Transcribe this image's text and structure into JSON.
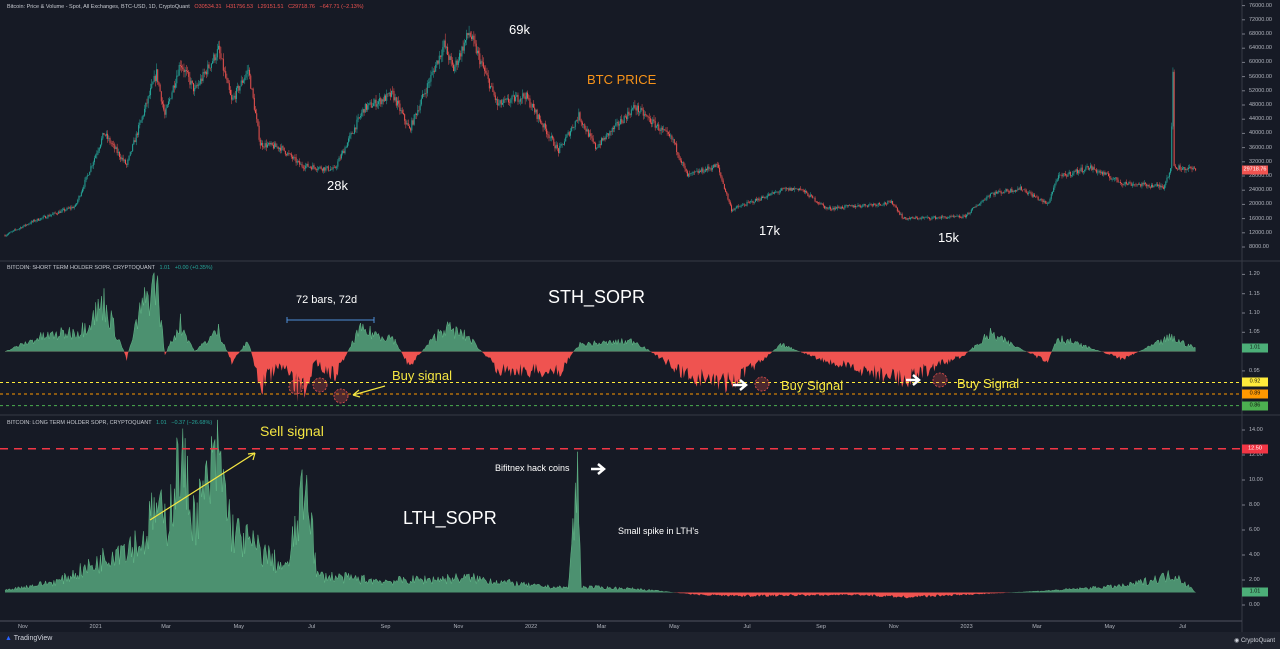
{
  "header": {
    "title": "Bitcoin: Price & Volume - Spot, All Exchanges, BTC-USD, 1D, CryptoQuant",
    "open": "O30534.31",
    "high": "H31756.53",
    "low": "L29151.51",
    "close": "C29718.76",
    "change": "−647.71 (−2.13%)"
  },
  "sth_legend": {
    "title": "BITCOIN: SHORT TERM HOLDER SOPR, CRYPTOQUANT",
    "value": "1.01",
    "change": "+0.00 (+0.35%)"
  },
  "lth_legend": {
    "title": "BITCOIN: LONG TERM HOLDER SOPR, CRYPTOQUANT",
    "value": "1.01",
    "change": "−0.37 (−26.68%)"
  },
  "annotations": {
    "p69k": "69k",
    "p28k": "28k",
    "p17k": "17k",
    "p15k": "15k",
    "btc_price": "BTC PRICE",
    "bars": "72 bars, 72d",
    "sth": "STH_SOPR",
    "buy1": "Buy signal",
    "buy2": "Buy Signal",
    "buy3": "Buy Signal",
    "sell": "Sell signal",
    "bitfinex": "Bifitnex hack coins",
    "lth": "LTH_SOPR",
    "spike": "Small spike in LTH's"
  },
  "footer": {
    "tradingview": "TradingView",
    "cryptoquant": "CryptoQuant"
  },
  "colors": {
    "up": "#26a69a",
    "down": "#ef5350",
    "sopr_up": "#5fb98a",
    "sopr_down": "#ef5350",
    "annotation": "#f5e642",
    "price_label": "#f7931a"
  },
  "chart_data": [
    {
      "type": "candlestick",
      "title": "Bitcoin: Price & Volume - Spot, All Exchanges, BTC-USD, 1D, CryptoQuant",
      "ylim": [
        6000,
        78000
      ],
      "yticks": [
        "76000.00",
        "72000.00",
        "68000.00",
        "64000.00",
        "60000.00",
        "56000.00",
        "52000.00",
        "48000.00",
        "44000.00",
        "40000.00",
        "36000.00",
        "32000.00",
        "28000.00",
        "24000.00",
        "20000.00",
        "16000.00",
        "12000.00",
        "8000.00"
      ],
      "last_price": "29718.76",
      "points": [
        [
          "2020-10-17",
          11300
        ],
        [
          "2020-11-10",
          15300
        ],
        [
          "2020-12-15",
          19500
        ],
        [
          "2021-01-08",
          40000
        ],
        [
          "2021-01-27",
          31000
        ],
        [
          "2021-02-21",
          57000
        ],
        [
          "2021-02-28",
          45000
        ],
        [
          "2021-03-13",
          60000
        ],
        [
          "2021-03-25",
          52000
        ],
        [
          "2021-04-14",
          63500
        ],
        [
          "2021-04-25",
          49000
        ],
        [
          "2021-05-09",
          58000
        ],
        [
          "2021-05-19",
          37000
        ],
        [
          "2021-06-05",
          36000
        ],
        [
          "2021-06-22",
          31000
        ],
        [
          "2021-07-20",
          29800
        ],
        [
          "2021-08-14",
          47000
        ],
        [
          "2021-09-07",
          51000
        ],
        [
          "2021-09-21",
          41000
        ],
        [
          "2021-10-20",
          65000
        ],
        [
          "2021-10-28",
          58000
        ],
        [
          "2021-11-10",
          68500
        ],
        [
          "2021-12-04",
          48000
        ],
        [
          "2021-12-27",
          50800
        ],
        [
          "2022-01-24",
          35000
        ],
        [
          "2022-02-10",
          45000
        ],
        [
          "2022-02-24",
          36000
        ],
        [
          "2022-03-29",
          47500
        ],
        [
          "2022-04-30",
          38000
        ],
        [
          "2022-05-12",
          28000
        ],
        [
          "2022-06-06",
          31000
        ],
        [
          "2022-06-18",
          18500
        ],
        [
          "2022-07-30",
          24000
        ],
        [
          "2022-08-14",
          24500
        ],
        [
          "2022-09-06",
          18800
        ],
        [
          "2022-10-31",
          20500
        ],
        [
          "2022-11-09",
          16000
        ],
        [
          "2022-12-30",
          16500
        ],
        [
          "2023-01-21",
          23000
        ],
        [
          "2023-02-16",
          24500
        ],
        [
          "2023-03-10",
          20000
        ],
        [
          "2023-03-18",
          27500
        ],
        [
          "2023-04-14",
          30500
        ],
        [
          "2023-05-12",
          26000
        ],
        [
          "2023-06-15",
          25000
        ],
        [
          "2023-06-21",
          30000
        ],
        [
          "2023-06-23",
          56000
        ],
        [
          "2023-06-24",
          30500
        ],
        [
          "2023-07-08",
          30000
        ],
        [
          "2023-07-12",
          29719
        ]
      ]
    },
    {
      "type": "area",
      "title": "BITCOIN: SHORT TERM HOLDER SOPR, CRYPTOQUANT",
      "baseline": 1,
      "ylim": [
        0.82,
        1.23
      ],
      "yticks": [
        "1.20",
        "1.15",
        "1.10",
        "1.05",
        "0.95"
      ],
      "levels": [
        {
          "value": "0.92",
          "color": "#ffeb3b"
        },
        {
          "value": "0.89",
          "color": "#ff9800"
        },
        {
          "value": "0.86",
          "color": "#4caf50"
        }
      ],
      "last_value": "1.01",
      "points": [
        [
          "2020-10-17",
          1.0
        ],
        [
          "2020-11-15",
          1.04
        ],
        [
          "2020-12-20",
          1.06
        ],
        [
          "2021-01-08",
          1.14
        ],
        [
          "2021-01-27",
          0.98
        ],
        [
          "2021-02-08",
          1.12
        ],
        [
          "2021-02-21",
          1.2
        ],
        [
          "2021-02-28",
          0.99
        ],
        [
          "2021-03-13",
          1.08
        ],
        [
          "2021-03-25",
          1.0
        ],
        [
          "2021-04-14",
          1.06
        ],
        [
          "2021-04-25",
          0.97
        ],
        [
          "2021-05-09",
          1.03
        ],
        [
          "2021-05-19",
          0.9
        ],
        [
          "2021-06-05",
          0.96
        ],
        [
          "2021-06-22",
          0.88
        ],
        [
          "2021-07-05",
          0.97
        ],
        [
          "2021-07-20",
          0.93
        ],
        [
          "2021-08-10",
          1.06
        ],
        [
          "2021-09-07",
          1.04
        ],
        [
          "2021-09-21",
          0.96
        ],
        [
          "2021-10-20",
          1.07
        ],
        [
          "2021-11-10",
          1.04
        ],
        [
          "2021-12-04",
          0.95
        ],
        [
          "2022-01-24",
          0.94
        ],
        [
          "2022-02-10",
          1.02
        ],
        [
          "2022-03-29",
          1.03
        ],
        [
          "2022-05-12",
          0.93
        ],
        [
          "2022-06-18",
          0.91
        ],
        [
          "2022-07-30",
          1.02
        ],
        [
          "2022-09-06",
          0.97
        ],
        [
          "2022-11-09",
          0.92
        ],
        [
          "2022-12-30",
          0.99
        ],
        [
          "2023-01-21",
          1.05
        ],
        [
          "2023-03-10",
          0.97
        ],
        [
          "2023-03-18",
          1.04
        ],
        [
          "2023-05-12",
          0.98
        ],
        [
          "2023-06-21",
          1.04
        ],
        [
          "2023-07-12",
          1.01
        ]
      ]
    },
    {
      "type": "area",
      "title": "BITCOIN: LONG TERM HOLDER SOPR, CRYPTOQUANT",
      "baseline": 1,
      "ylim": [
        -0.5,
        15
      ],
      "yticks": [
        "14.00",
        "12.00",
        "10.00",
        "8.00",
        "6.00",
        "4.00",
        "2.00",
        "0.00"
      ],
      "levels": [
        {
          "value": "12.50",
          "color": "#f23645"
        }
      ],
      "last_value": "1.01",
      "points": [
        [
          "2020-10-17",
          1.2
        ],
        [
          "2020-12-01",
          2.0
        ],
        [
          "2021-01-01",
          3.5
        ],
        [
          "2021-01-20",
          5.0
        ],
        [
          "2021-02-10",
          5.5
        ],
        [
          "2021-02-20",
          8.5
        ],
        [
          "2021-03-01",
          7.0
        ],
        [
          "2021-03-13",
          12.9
        ],
        [
          "2021-03-25",
          7.5
        ],
        [
          "2021-04-14",
          13.0
        ],
        [
          "2021-04-25",
          6.5
        ],
        [
          "2021-05-15",
          5.0
        ],
        [
          "2021-06-10",
          3.0
        ],
        [
          "2021-06-28",
          11.3
        ],
        [
          "2021-07-05",
          2.5
        ],
        [
          "2021-09-01",
          2.0
        ],
        [
          "2021-11-10",
          2.3
        ],
        [
          "2022-01-01",
          1.6
        ],
        [
          "2022-02-01",
          1.4
        ],
        [
          "2022-02-09",
          11.1
        ],
        [
          "2022-02-12",
          1.5
        ],
        [
          "2022-04-01",
          1.3
        ],
        [
          "2022-05-20",
          0.8
        ],
        [
          "2022-07-01",
          0.7
        ],
        [
          "2022-10-01",
          0.8
        ],
        [
          "2022-11-09",
          0.6
        ],
        [
          "2023-01-01",
          0.8
        ],
        [
          "2023-03-18",
          1.2
        ],
        [
          "2023-05-15",
          1.6
        ],
        [
          "2023-06-25",
          2.6
        ],
        [
          "2023-07-12",
          1.01
        ]
      ]
    }
  ],
  "xaxis": [
    "Nov",
    "2021",
    "Mar",
    "May",
    "Jul",
    "Sep",
    "Nov",
    "2022",
    "Mar",
    "May",
    "Jul",
    "Sep",
    "Nov",
    "2023",
    "Mar",
    "May",
    "Jul"
  ]
}
